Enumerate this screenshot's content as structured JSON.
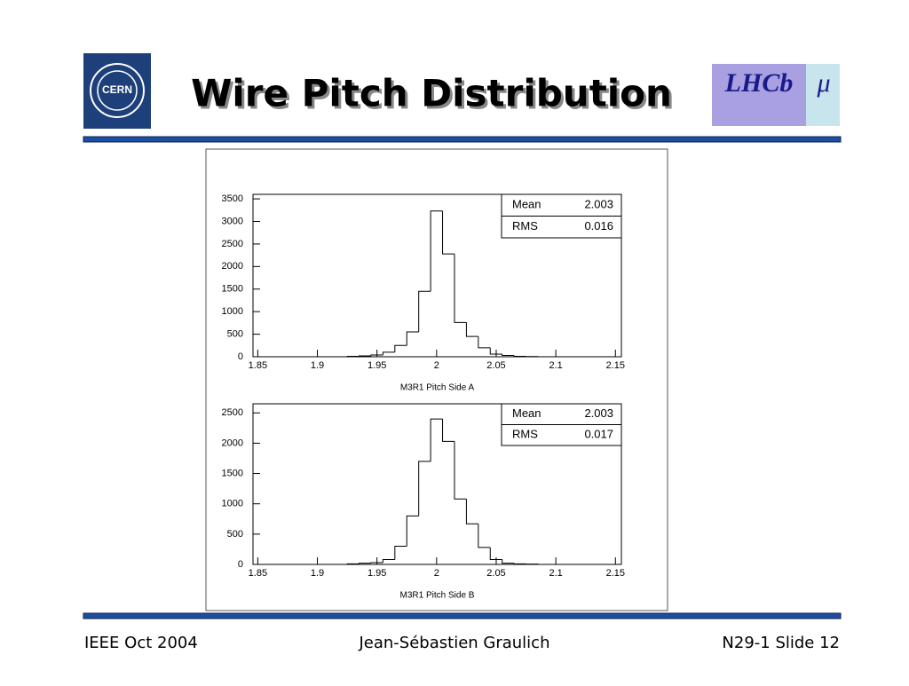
{
  "slide": {
    "title": "Wire Pitch Distribution",
    "logos": {
      "cern": "CERN",
      "lhcb": "LHCb"
    },
    "footer": {
      "left": "IEEE Oct 2004",
      "center": "Jean-Sébastien Graulich",
      "right": "N29-1 Slide 12"
    }
  },
  "chart_data": [
    {
      "type": "histogram",
      "x_label": "M3R1 Pitch Side A",
      "bins": [
        1.925,
        1.935,
        1.945,
        1.955,
        1.965,
        1.975,
        1.985,
        1.995,
        2.005,
        2.015,
        2.025,
        2.035,
        2.045,
        2.055,
        2.065,
        2.075,
        2.085
      ],
      "values": [
        10,
        20,
        40,
        100,
        250,
        550,
        1450,
        3230,
        2280,
        760,
        450,
        200,
        60,
        30,
        10,
        5
      ],
      "color": "#000000",
      "xlim": [
        1.846,
        2.155
      ],
      "ylim": [
        0,
        3600
      ],
      "xticks": [
        1.85,
        1.9,
        1.95,
        2,
        2.05,
        2.1,
        2.15
      ],
      "yticks": [
        0,
        500,
        1000,
        1500,
        2000,
        2500,
        3000,
        3500
      ],
      "stats": [
        {
          "label": "Mean",
          "value": 2.003
        },
        {
          "label": "RMS",
          "value": 0.016
        }
      ]
    },
    {
      "type": "histogram",
      "x_label": "M3R1 Pitch Side B",
      "bins": [
        1.925,
        1.935,
        1.945,
        1.955,
        1.965,
        1.975,
        1.985,
        1.995,
        2.005,
        2.015,
        2.025,
        2.035,
        2.045,
        2.055,
        2.065,
        2.075,
        2.085
      ],
      "values": [
        10,
        20,
        30,
        80,
        300,
        800,
        1700,
        2400,
        2030,
        1080,
        670,
        280,
        80,
        20,
        10,
        5
      ],
      "color": "#000000",
      "xlim": [
        1.846,
        2.155
      ],
      "ylim": [
        0,
        2650
      ],
      "xticks": [
        1.85,
        1.9,
        1.95,
        2,
        2.05,
        2.1,
        2.15
      ],
      "yticks": [
        0,
        500,
        1000,
        1500,
        2000,
        2500
      ],
      "stats": [
        {
          "label": "Mean",
          "value": 2.003
        },
        {
          "label": "RMS",
          "value": 0.017
        }
      ]
    }
  ]
}
